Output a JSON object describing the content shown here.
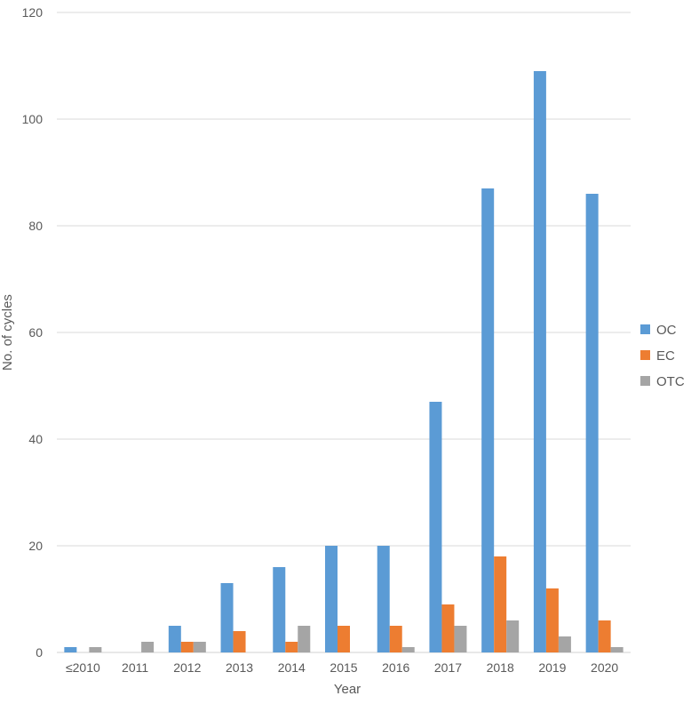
{
  "chart_data": {
    "type": "bar",
    "title": "",
    "xlabel": "Year",
    "ylabel": "No. of cycles",
    "categories": [
      "≤2010",
      "2011",
      "2012",
      "2013",
      "2014",
      "2015",
      "2016",
      "2017",
      "2018",
      "2019",
      "2020"
    ],
    "series": [
      {
        "name": "OC",
        "color": "#5B9BD5",
        "values": [
          1,
          0,
          5,
          13,
          16,
          20,
          20,
          47,
          87,
          109,
          86
        ]
      },
      {
        "name": "EC",
        "color": "#ED7D31",
        "values": [
          0,
          0,
          2,
          4,
          2,
          5,
          5,
          9,
          18,
          12,
          6
        ]
      },
      {
        "name": "OTC",
        "color": "#A5A5A5",
        "values": [
          1,
          2,
          2,
          0,
          5,
          0,
          1,
          5,
          6,
          3,
          1
        ]
      }
    ],
    "ylim": [
      0,
      120
    ],
    "yticks": [
      0,
      20,
      40,
      60,
      80,
      100,
      120
    ],
    "grid": true,
    "legend_position": "right"
  }
}
